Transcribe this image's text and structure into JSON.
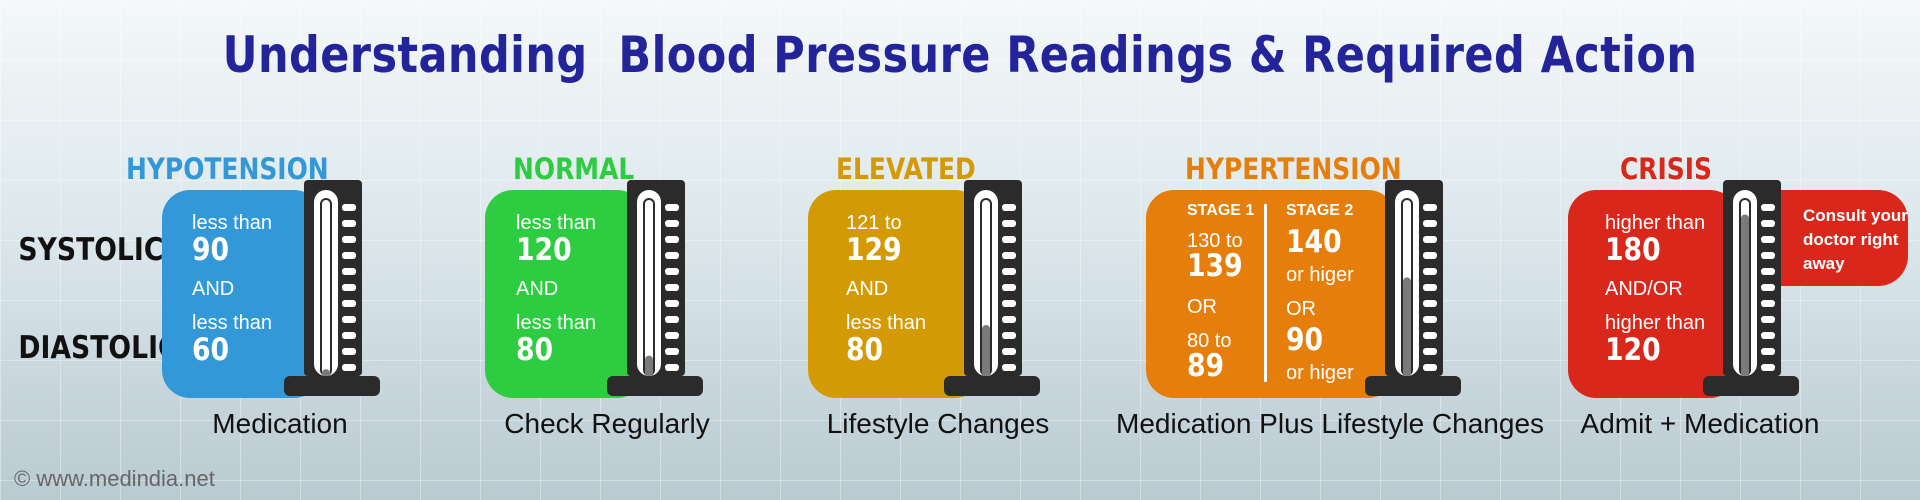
{
  "title": "Understanding  Blood Pressure Readings & Required Action",
  "row_labels": {
    "systolic": "SYSTOLIC",
    "diastolic": "DIASTOLIC"
  },
  "categories": [
    {
      "name": "HYPOTENSION",
      "color": "#3398d8",
      "systolic_prefix": "less than",
      "systolic_value": "90",
      "joiner": "AND",
      "diastolic_prefix": "less than",
      "diastolic_value": "60",
      "level": 0.04,
      "action": "Medication"
    },
    {
      "name": "NORMAL",
      "color": "#2ecc40",
      "systolic_prefix": "less than",
      "systolic_value": "120",
      "joiner": "AND",
      "diastolic_prefix": "less than",
      "diastolic_value": "80",
      "level": 0.12,
      "action": "Check Regularly"
    },
    {
      "name": "ELEVATED",
      "color": "#d49a06",
      "systolic_prefix": "121 to",
      "systolic_value": "129",
      "joiner": "AND",
      "diastolic_prefix": "less than",
      "diastolic_value": "80",
      "level": 0.3,
      "action": "Lifestyle Changes"
    },
    {
      "name": "HYPERTENSION",
      "color": "#e67e0b",
      "stage1": {
        "label": "STAGE 1",
        "systolic_prefix": "130 to",
        "systolic_value": "139",
        "joiner": "OR",
        "diastolic_prefix": "80 to",
        "diastolic_value": "89"
      },
      "stage2": {
        "label": "STAGE 2",
        "systolic_value": "140",
        "systolic_suffix": "or higer",
        "joiner": "OR",
        "diastolic_value": "90",
        "diastolic_suffix": "or higer"
      },
      "level": 0.58,
      "action": "Medication Plus Lifestyle Changes"
    },
    {
      "name": "CRISIS",
      "color": "#d9271c",
      "systolic_prefix": "higher than",
      "systolic_value": "180",
      "joiner": "AND/OR",
      "diastolic_prefix": "higher than",
      "diastolic_value": "120",
      "level": 0.95,
      "consult": "Consult your doctor right away",
      "action": "Admit + Medication"
    }
  ],
  "footer": "© www.medindia.net"
}
